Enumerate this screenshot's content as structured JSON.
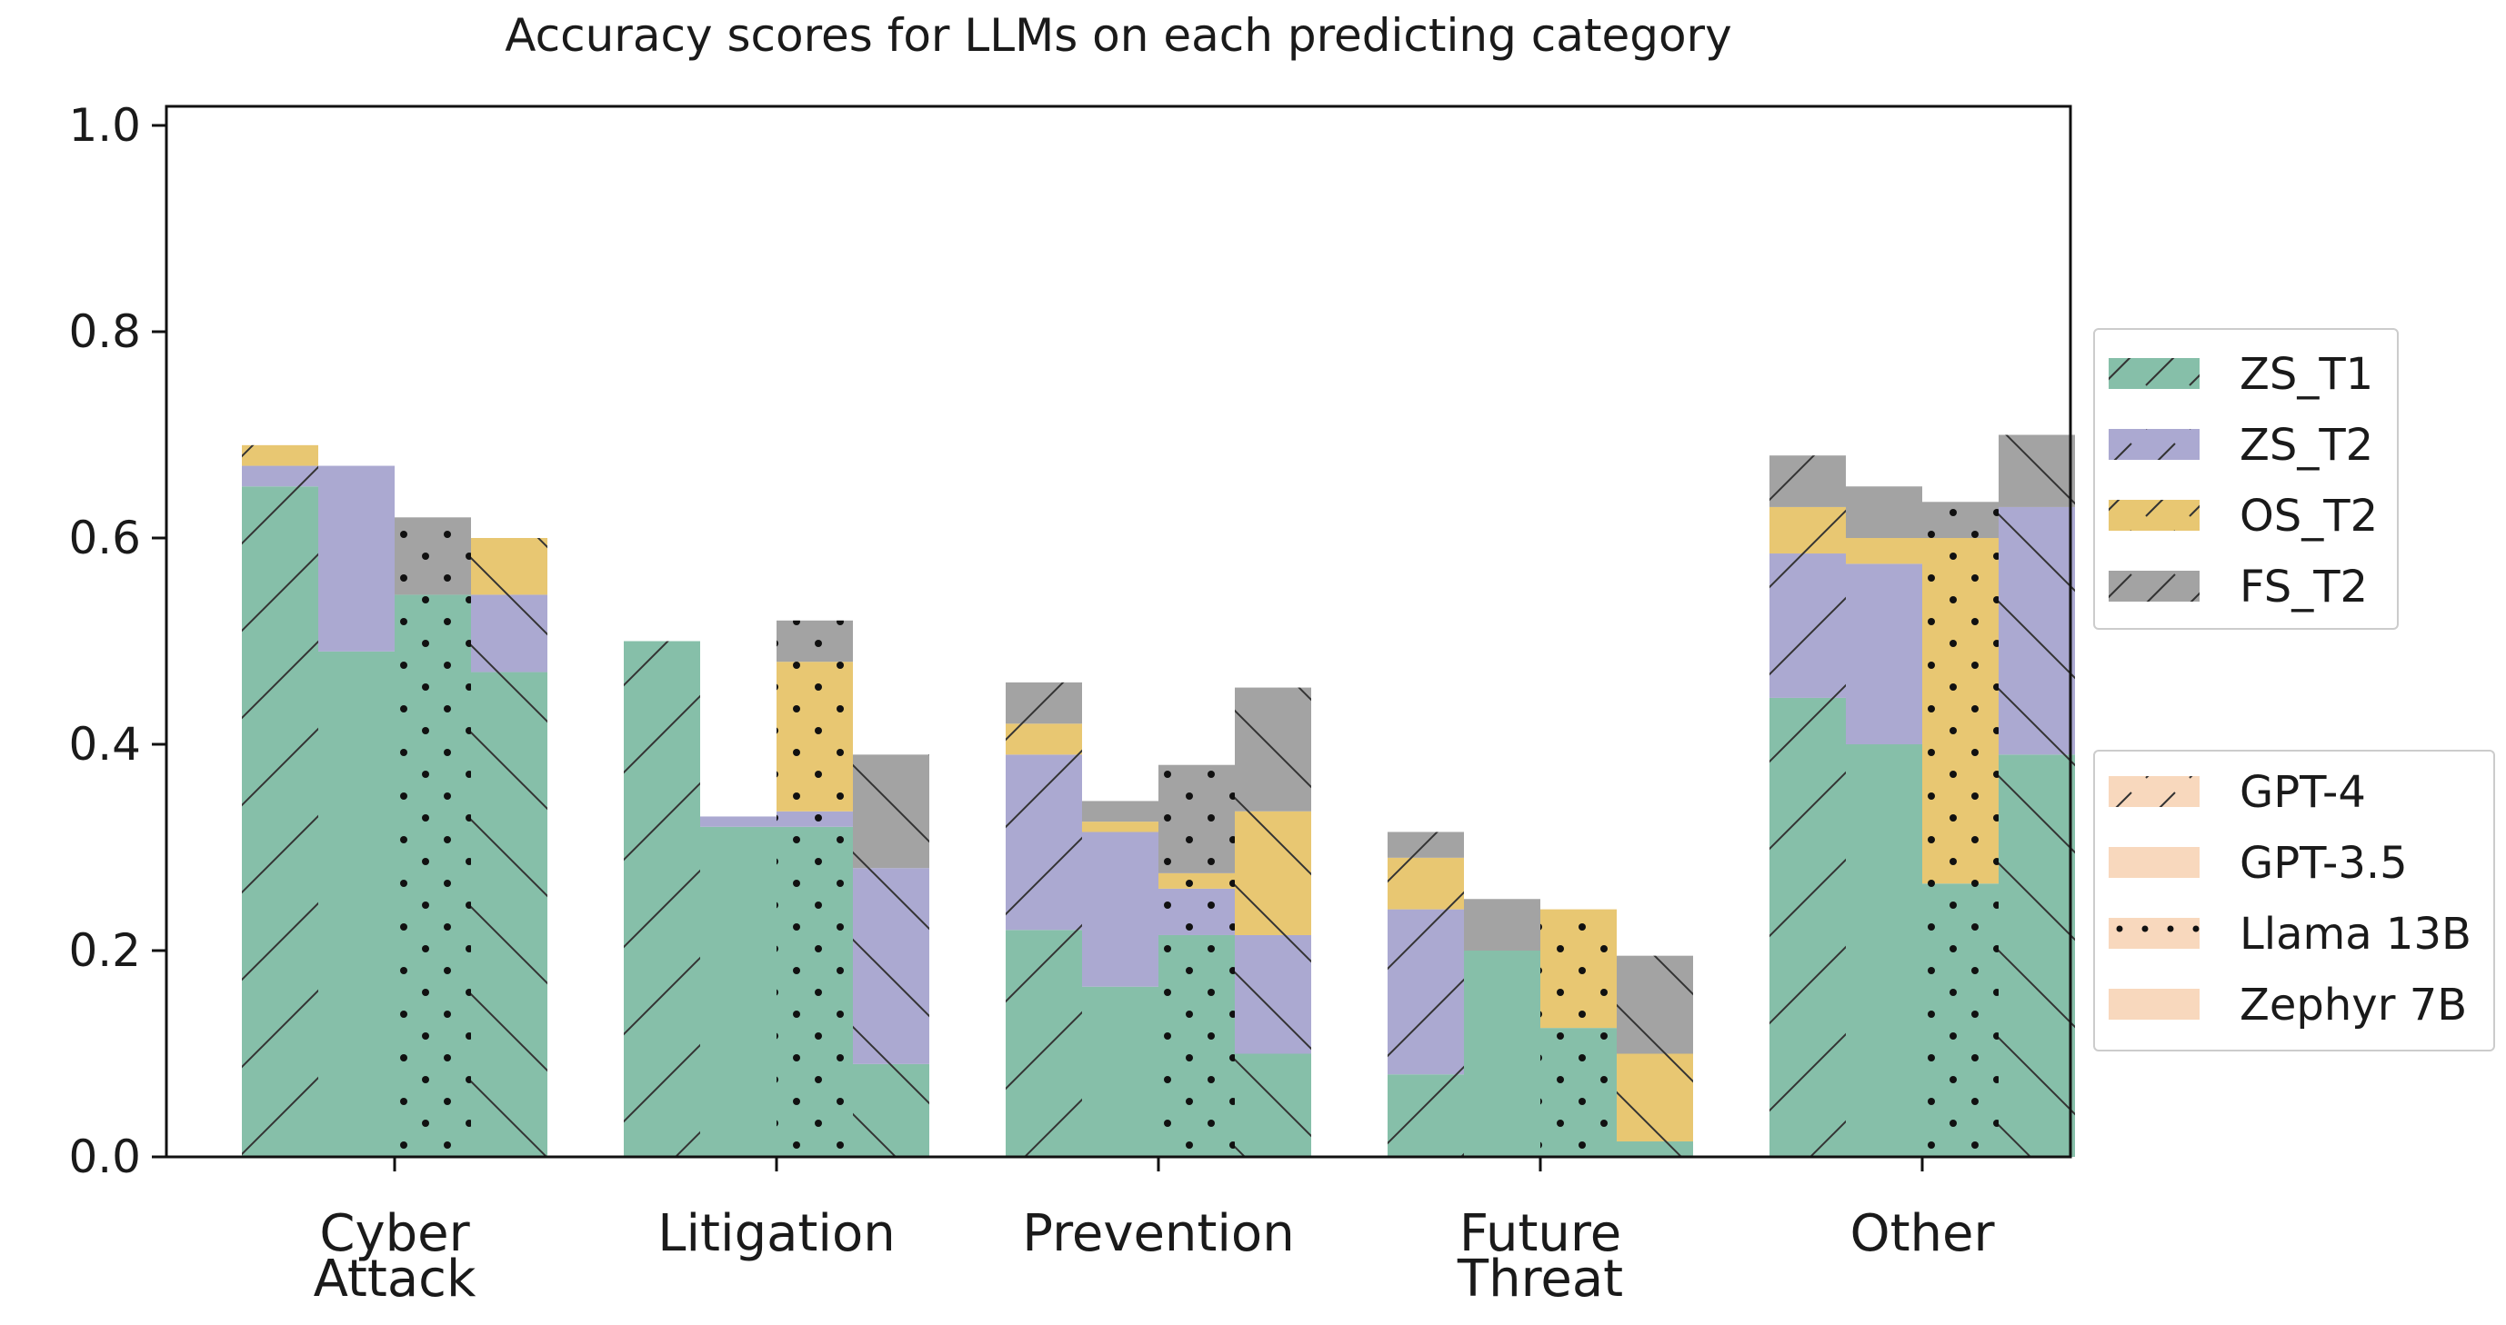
{
  "chart_data": {
    "type": "bar",
    "stacked": true,
    "grouped": true,
    "title": "Accuracy scores for LLMs on each predicting category",
    "xlabel": "",
    "ylabel": "",
    "ylim": [
      0,
      1.0
    ],
    "yticks": [
      "0.0",
      "0.2",
      "0.4",
      "0.6",
      "0.8",
      "1.0"
    ],
    "categories": [
      [
        "Cyber",
        "Attack"
      ],
      [
        "Litigation"
      ],
      [
        "Prevention"
      ],
      [
        "Future",
        "Threat"
      ],
      [
        "Other"
      ]
    ],
    "models": [
      "GPT-4",
      "GPT-3.5",
      "Llama 13B",
      "Zephyr 7B"
    ],
    "series": [
      {
        "name": "ZS_T1",
        "color": "#86bfa9"
      },
      {
        "name": "ZS_T2",
        "color": "#aba9d1"
      },
      {
        "name": "OS_T2",
        "color": "#e8c772"
      },
      {
        "name": "FS_T2",
        "color": "#a3a3a3"
      }
    ],
    "cumulative_values": [
      [
        [
          0.65,
          0.67,
          0.69,
          0.69
        ],
        [
          0.49,
          0.67,
          0.67,
          0.67
        ],
        [
          0.545,
          0.545,
          0.545,
          0.62
        ],
        [
          0.47,
          0.545,
          0.6,
          0.6
        ]
      ],
      [
        [
          0.5,
          0.5,
          0.5,
          0.5
        ],
        [
          0.32,
          0.33,
          0.33,
          0.33
        ],
        [
          0.32,
          0.335,
          0.48,
          0.52
        ],
        [
          0.09,
          0.28,
          0.28,
          0.39
        ]
      ],
      [
        [
          0.22,
          0.39,
          0.42,
          0.46
        ],
        [
          0.165,
          0.315,
          0.325,
          0.345
        ],
        [
          0.215,
          0.26,
          0.275,
          0.38
        ],
        [
          0.1,
          0.215,
          0.335,
          0.455
        ]
      ],
      [
        [
          0.08,
          0.24,
          0.29,
          0.315
        ],
        [
          0.2,
          0.2,
          0.2,
          0.25
        ],
        [
          0.125,
          0.125,
          0.24,
          0.24
        ],
        [
          0.015,
          0.015,
          0.1,
          0.195
        ]
      ],
      [
        [
          0.445,
          0.585,
          0.63,
          0.68
        ],
        [
          0.4,
          0.575,
          0.6,
          0.65
        ],
        [
          0.265,
          0.265,
          0.6,
          0.635
        ],
        [
          0.39,
          0.63,
          0.63,
          0.7
        ]
      ]
    ],
    "legend_series_location": "right-upper",
    "legend_models_location": "right-lower",
    "legend_model_swatch_color": "#f8d8bd",
    "grid": false
  }
}
